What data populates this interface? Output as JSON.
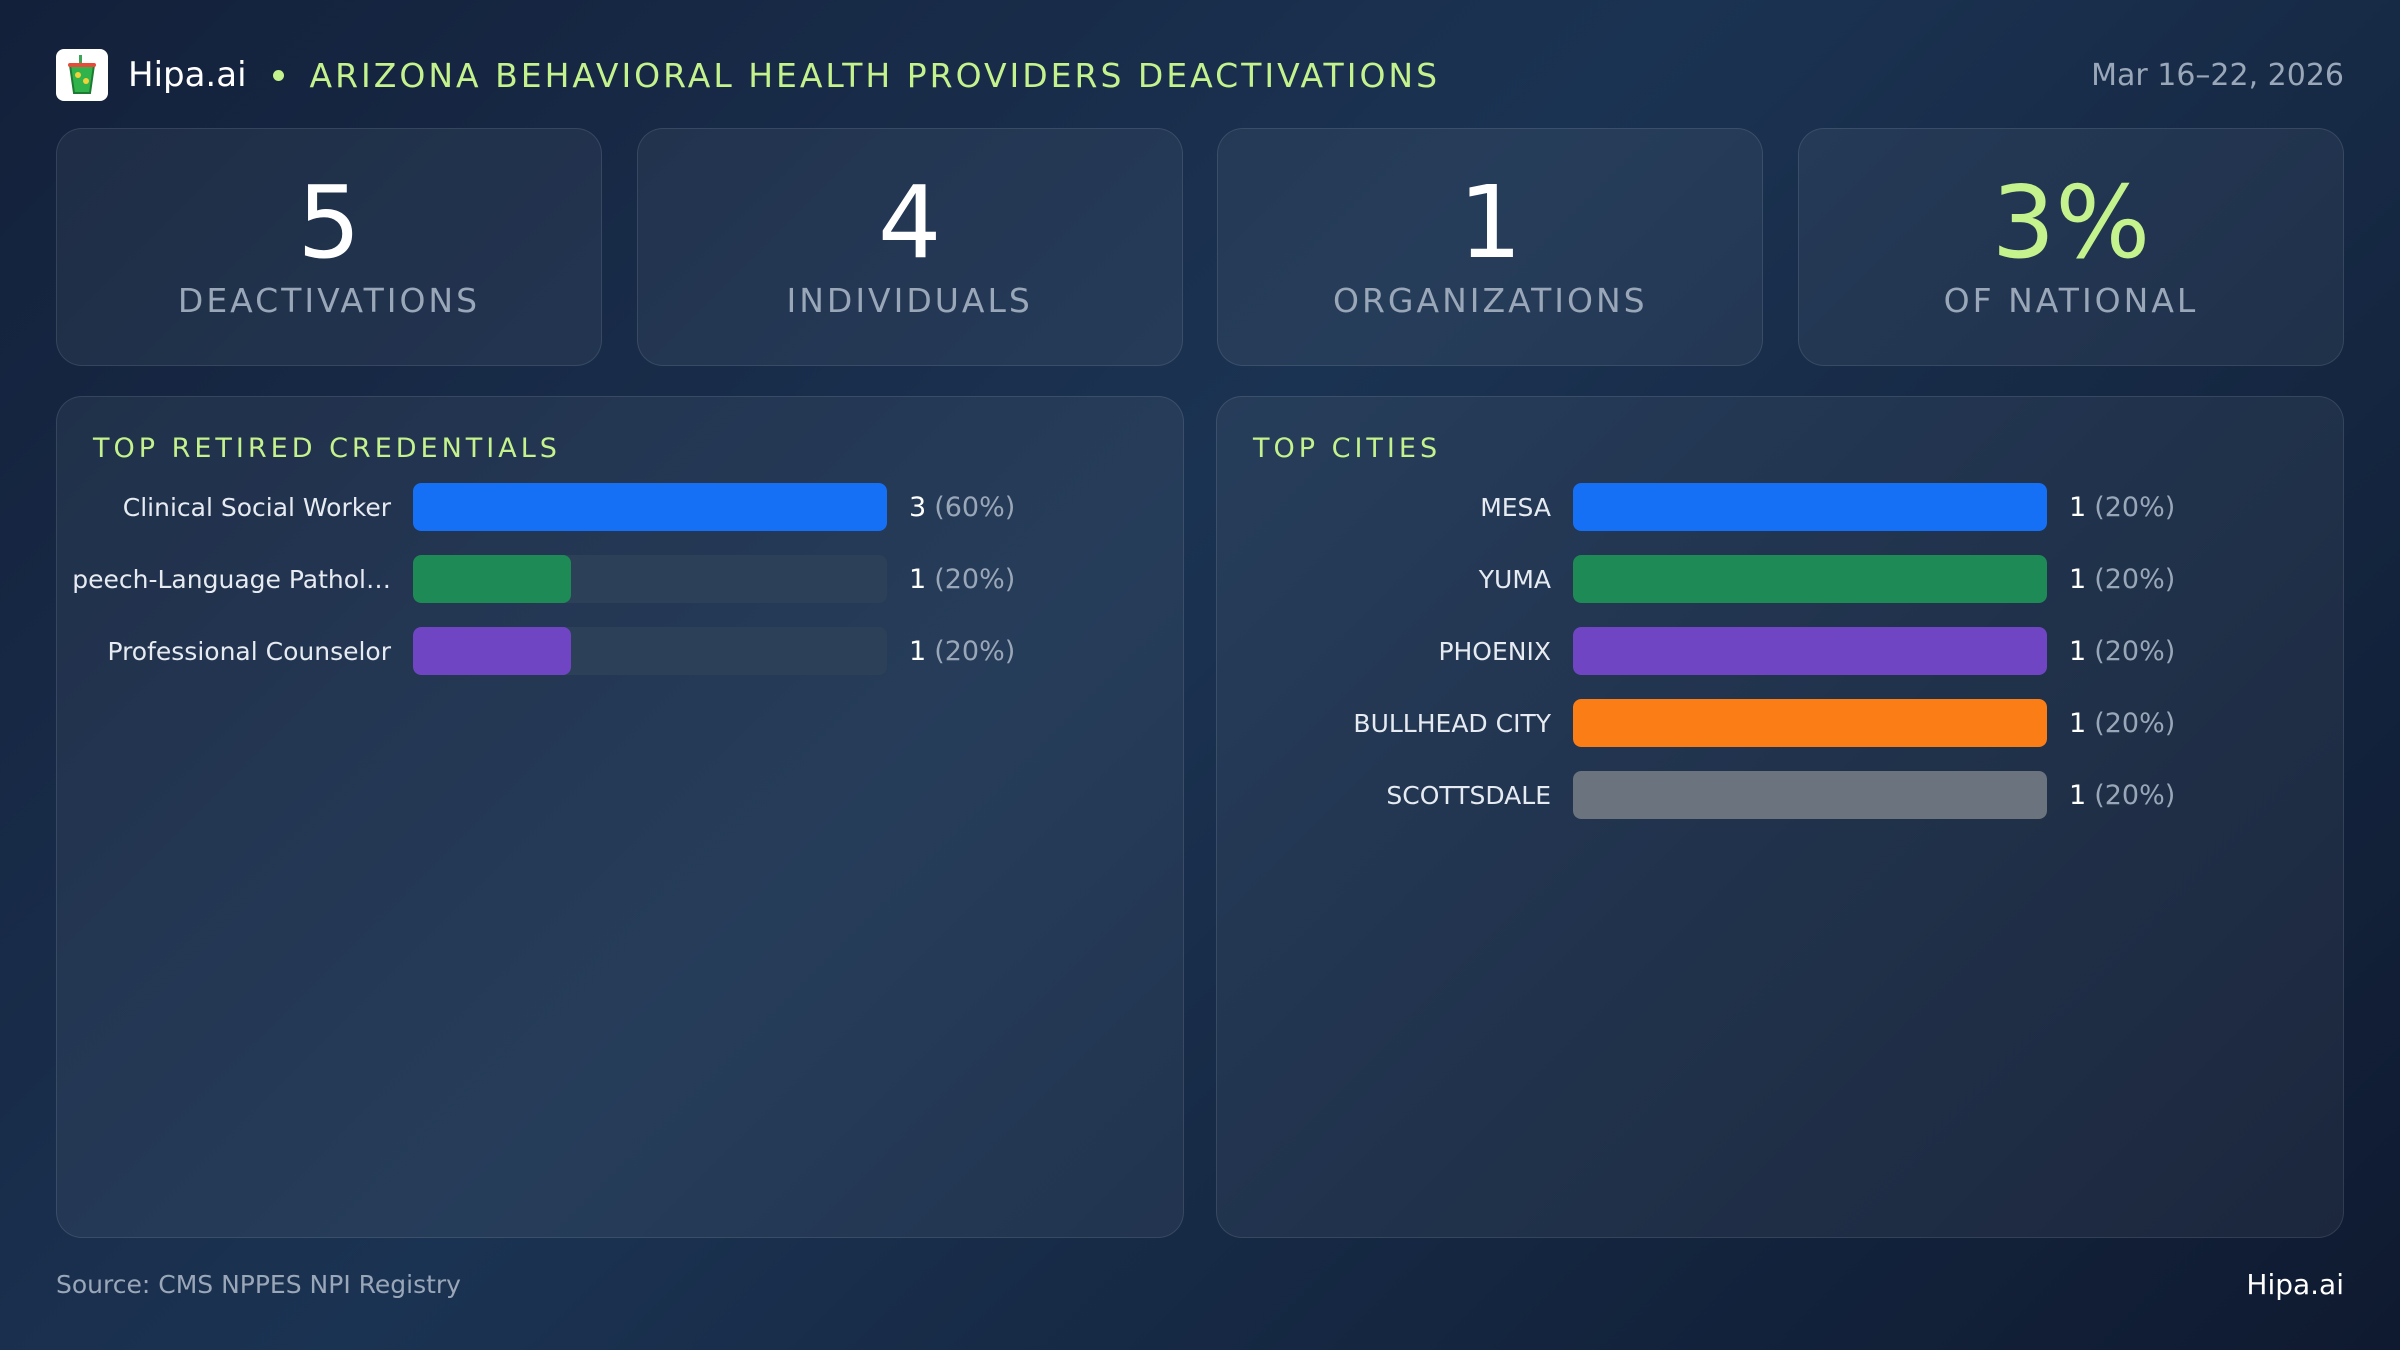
{
  "header": {
    "brand": "Hipa.ai",
    "title": "ARIZONA BEHAVIORAL HEALTH PROVIDERS DEACTIVATIONS",
    "date": "Mar 16–22, 2026",
    "logo_icon": "cup-icon"
  },
  "stats": [
    {
      "value": "5",
      "label": "DEACTIVATIONS",
      "accent": false
    },
    {
      "value": "4",
      "label": "INDIVIDUALS",
      "accent": false
    },
    {
      "value": "1",
      "label": "ORGANIZATIONS",
      "accent": false
    },
    {
      "value": "3%",
      "label": "OF NATIONAL",
      "accent": true
    }
  ],
  "credentials": {
    "title": "TOP RETIRED CREDENTIALS",
    "items": [
      {
        "label": "Clinical Social Worker",
        "count": "3",
        "pct": "(60%)",
        "fill": 1.0,
        "color": "#1670f5"
      },
      {
        "label": "peech-Language Pathol…",
        "count": "1",
        "pct": "(20%)",
        "fill": 0.333,
        "color": "#1e8a55"
      },
      {
        "label": "Professional Counselor",
        "count": "1",
        "pct": "(20%)",
        "fill": 0.333,
        "color": "#6f45c4"
      }
    ]
  },
  "cities": {
    "title": "TOP CITIES",
    "items": [
      {
        "label": "MESA",
        "count": "1",
        "pct": "(20%)",
        "fill": 1.0,
        "color": "#1670f5"
      },
      {
        "label": "YUMA",
        "count": "1",
        "pct": "(20%)",
        "fill": 1.0,
        "color": "#1e8a55"
      },
      {
        "label": "PHOENIX",
        "count": "1",
        "pct": "(20%)",
        "fill": 1.0,
        "color": "#6f45c4"
      },
      {
        "label": "BULLHEAD CITY",
        "count": "1",
        "pct": "(20%)",
        "fill": 1.0,
        "color": "#fb7d16"
      },
      {
        "label": "SCOTTSDALE",
        "count": "1",
        "pct": "(20%)",
        "fill": 1.0,
        "color": "#6b737e"
      }
    ]
  },
  "footer": {
    "source": "Source: CMS NPPES NPI Registry",
    "brand": "Hipa.ai"
  },
  "colors": {
    "accent": "#c4f28c",
    "muted": "#9aa7b8"
  }
}
